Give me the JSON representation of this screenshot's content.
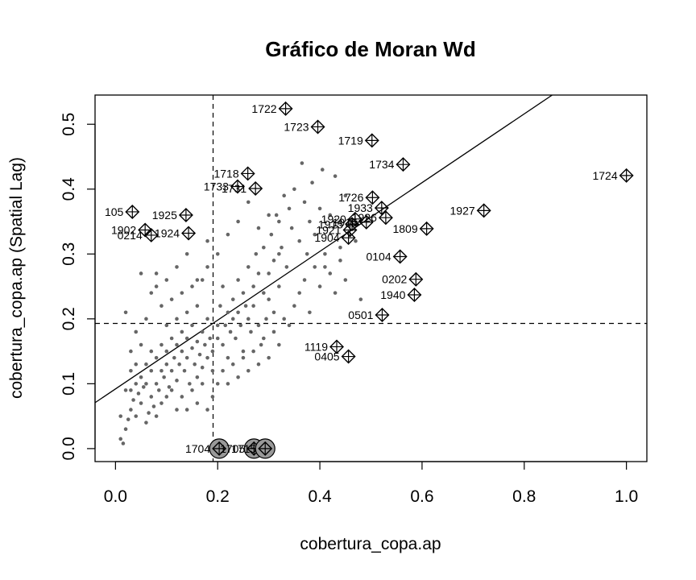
{
  "chart_data": {
    "type": "scatter",
    "title": "Gráfico de Moran Wd",
    "xlabel": "cobertura_copa.ap",
    "ylabel": "cobertura_copa.ap (Spatial Lag)",
    "xlim": [
      -0.04,
      1.04
    ],
    "ylim": [
      -0.02,
      0.545
    ],
    "x_ticks": [
      "0.0",
      "0.2",
      "0.4",
      "0.6",
      "0.8",
      "1.0"
    ],
    "y_ticks": [
      "0.0",
      "0.1",
      "0.2",
      "0.3",
      "0.4",
      "0.5"
    ],
    "x_tick_values": [
      0,
      0.2,
      0.4,
      0.6,
      0.8,
      1.0
    ],
    "y_tick_values": [
      0,
      0.1,
      0.2,
      0.3,
      0.4,
      0.5
    ],
    "mean_x": 0.191,
    "mean_y": 0.193,
    "regression": {
      "intercept": 0.092,
      "slope": 0.53
    },
    "colors": {
      "points": "#666666",
      "influential": "#000000",
      "zero_fill": "#999999",
      "axis": "#000000"
    },
    "influential_points": [
      {
        "label": "1722",
        "x": 0.333,
        "y": 0.524
      },
      {
        "label": "1723",
        "x": 0.396,
        "y": 0.496
      },
      {
        "label": "1719",
        "x": 0.502,
        "y": 0.475
      },
      {
        "label": "1734",
        "x": 0.563,
        "y": 0.438
      },
      {
        "label": "1724",
        "x": 1.0,
        "y": 0.421
      },
      {
        "label": "1718",
        "x": 0.259,
        "y": 0.424
      },
      {
        "label": "1733",
        "x": 0.239,
        "y": 0.404
      },
      {
        "label": "1731",
        "x": 0.274,
        "y": 0.401
      },
      {
        "label": "1726",
        "x": 0.503,
        "y": 0.387
      },
      {
        "label": "1933",
        "x": 0.521,
        "y": 0.371
      },
      {
        "label": "1927",
        "x": 0.721,
        "y": 0.367
      },
      {
        "label": "105",
        "x": 0.033,
        "y": 0.365
      },
      {
        "label": "1925",
        "x": 0.138,
        "y": 0.36
      },
      {
        "label": "1920",
        "x": 0.469,
        "y": 0.354
      },
      {
        "label": "1926",
        "x": 0.529,
        "y": 0.356
      },
      {
        "label": "1916",
        "x": 0.491,
        "y": 0.349
      },
      {
        "label": "1915",
        "x": 0.463,
        "y": 0.346
      },
      {
        "label": "1921",
        "x": 0.459,
        "y": 0.337
      },
      {
        "label": "1809",
        "x": 0.609,
        "y": 0.339
      },
      {
        "label": "1902",
        "x": 0.058,
        "y": 0.337
      },
      {
        "label": "0214",
        "x": 0.07,
        "y": 0.329
      },
      {
        "label": "1924",
        "x": 0.143,
        "y": 0.332
      },
      {
        "label": "1904",
        "x": 0.456,
        "y": 0.325
      },
      {
        "label": "0104",
        "x": 0.557,
        "y": 0.296
      },
      {
        "label": "0202",
        "x": 0.588,
        "y": 0.261
      },
      {
        "label": "1940",
        "x": 0.585,
        "y": 0.237
      },
      {
        "label": "0501",
        "x": 0.522,
        "y": 0.206
      },
      {
        "label": "1119",
        "x": 0.433,
        "y": 0.157
      },
      {
        "label": "0405",
        "x": 0.456,
        "y": 0.142
      },
      {
        "label": "1704",
        "x": 0.203,
        "y": 0.0
      },
      {
        "label": "1705",
        "x": 0.271,
        "y": 0.0
      },
      {
        "label": "1715",
        "x": 0.293,
        "y": 0.0
      }
    ],
    "points": [
      [
        0.01,
        0.015
      ],
      [
        0.015,
        0.008
      ],
      [
        0.02,
        0.03
      ],
      [
        0.025,
        0.045
      ],
      [
        0.03,
        0.06
      ],
      [
        0.03,
        0.09
      ],
      [
        0.035,
        0.075
      ],
      [
        0.04,
        0.05
      ],
      [
        0.04,
        0.1
      ],
      [
        0.045,
        0.085
      ],
      [
        0.05,
        0.07
      ],
      [
        0.05,
        0.11
      ],
      [
        0.055,
        0.095
      ],
      [
        0.06,
        0.04
      ],
      [
        0.06,
        0.13
      ],
      [
        0.065,
        0.055
      ],
      [
        0.07,
        0.08
      ],
      [
        0.07,
        0.12
      ],
      [
        0.075,
        0.065
      ],
      [
        0.08,
        0.1
      ],
      [
        0.08,
        0.14
      ],
      [
        0.085,
        0.09
      ],
      [
        0.09,
        0.07
      ],
      [
        0.09,
        0.16
      ],
      [
        0.095,
        0.11
      ],
      [
        0.1,
        0.13
      ],
      [
        0.1,
        0.15
      ],
      [
        0.105,
        0.095
      ],
      [
        0.11,
        0.12
      ],
      [
        0.11,
        0.17
      ],
      [
        0.115,
        0.14
      ],
      [
        0.12,
        0.105
      ],
      [
        0.12,
        0.16
      ],
      [
        0.125,
        0.13
      ],
      [
        0.13,
        0.18
      ],
      [
        0.13,
        0.15
      ],
      [
        0.135,
        0.12
      ],
      [
        0.14,
        0.14
      ],
      [
        0.14,
        0.17
      ],
      [
        0.145,
        0.1
      ],
      [
        0.15,
        0.155
      ],
      [
        0.15,
        0.19
      ],
      [
        0.155,
        0.13
      ],
      [
        0.16,
        0.165
      ],
      [
        0.16,
        0.11
      ],
      [
        0.165,
        0.145
      ],
      [
        0.17,
        0.18
      ],
      [
        0.17,
        0.125
      ],
      [
        0.175,
        0.16
      ],
      [
        0.18,
        0.14
      ],
      [
        0.18,
        0.2
      ],
      [
        0.185,
        0.17
      ],
      [
        0.19,
        0.12
      ],
      [
        0.19,
        0.15
      ],
      [
        0.2,
        0.19
      ],
      [
        0.2,
        0.17
      ],
      [
        0.205,
        0.22
      ],
      [
        0.21,
        0.16
      ],
      [
        0.21,
        0.25
      ],
      [
        0.215,
        0.19
      ],
      [
        0.22,
        0.21
      ],
      [
        0.22,
        0.14
      ],
      [
        0.225,
        0.18
      ],
      [
        0.23,
        0.23
      ],
      [
        0.23,
        0.2
      ],
      [
        0.235,
        0.17
      ],
      [
        0.24,
        0.26
      ],
      [
        0.24,
        0.21
      ],
      [
        0.245,
        0.19
      ],
      [
        0.25,
        0.24
      ],
      [
        0.25,
        0.15
      ],
      [
        0.255,
        0.22
      ],
      [
        0.26,
        0.28
      ],
      [
        0.26,
        0.2
      ],
      [
        0.265,
        0.18
      ],
      [
        0.27,
        0.25
      ],
      [
        0.27,
        0.22
      ],
      [
        0.275,
        0.3
      ],
      [
        0.28,
        0.19
      ],
      [
        0.28,
        0.27
      ],
      [
        0.285,
        0.16
      ],
      [
        0.29,
        0.24
      ],
      [
        0.29,
        0.31
      ],
      [
        0.295,
        0.2
      ],
      [
        0.3,
        0.27
      ],
      [
        0.3,
        0.23
      ],
      [
        0.305,
        0.33
      ],
      [
        0.31,
        0.21
      ],
      [
        0.31,
        0.29
      ],
      [
        0.315,
        0.36
      ],
      [
        0.32,
        0.25
      ],
      [
        0.32,
        0.35
      ],
      [
        0.325,
        0.31
      ],
      [
        0.33,
        0.39
      ],
      [
        0.335,
        0.28
      ],
      [
        0.34,
        0.37
      ],
      [
        0.345,
        0.34
      ],
      [
        0.35,
        0.4
      ],
      [
        0.36,
        0.32
      ],
      [
        0.365,
        0.44
      ],
      [
        0.37,
        0.38
      ],
      [
        0.375,
        0.3
      ],
      [
        0.38,
        0.35
      ],
      [
        0.385,
        0.41
      ],
      [
        0.39,
        0.33
      ],
      [
        0.4,
        0.37
      ],
      [
        0.405,
        0.43
      ],
      [
        0.41,
        0.28
      ],
      [
        0.42,
        0.36
      ],
      [
        0.43,
        0.42
      ],
      [
        0.44,
        0.31
      ],
      [
        0.45,
        0.39
      ],
      [
        0.46,
        0.35
      ],
      [
        0.02,
        0.21
      ],
      [
        0.03,
        0.15
      ],
      [
        0.04,
        0.18
      ],
      [
        0.05,
        0.27
      ],
      [
        0.06,
        0.2
      ],
      [
        0.07,
        0.24
      ],
      [
        0.08,
        0.27
      ],
      [
        0.09,
        0.22
      ],
      [
        0.1,
        0.19
      ],
      [
        0.11,
        0.23
      ],
      [
        0.12,
        0.2
      ],
      [
        0.13,
        0.24
      ],
      [
        0.14,
        0.21
      ],
      [
        0.15,
        0.25
      ],
      [
        0.16,
        0.22
      ],
      [
        0.17,
        0.26
      ],
      [
        0.18,
        0.32
      ],
      [
        0.01,
        0.05
      ],
      [
        0.02,
        0.09
      ],
      [
        0.03,
        0.12
      ],
      [
        0.04,
        0.13
      ],
      [
        0.05,
        0.16
      ],
      [
        0.06,
        0.1
      ],
      [
        0.07,
        0.15
      ],
      [
        0.08,
        0.05
      ],
      [
        0.09,
        0.12
      ],
      [
        0.1,
        0.08
      ],
      [
        0.11,
        0.09
      ],
      [
        0.12,
        0.06
      ],
      [
        0.13,
        0.08
      ],
      [
        0.14,
        0.06
      ],
      [
        0.15,
        0.09
      ],
      [
        0.16,
        0.07
      ],
      [
        0.17,
        0.1
      ],
      [
        0.18,
        0.06
      ],
      [
        0.19,
        0.08
      ],
      [
        0.2,
        0.1
      ],
      [
        0.21,
        0.12
      ],
      [
        0.22,
        0.1
      ],
      [
        0.23,
        0.13
      ],
      [
        0.24,
        0.11
      ],
      [
        0.25,
        0.14
      ],
      [
        0.26,
        0.12
      ],
      [
        0.27,
        0.15
      ],
      [
        0.28,
        0.13
      ],
      [
        0.29,
        0.17
      ],
      [
        0.3,
        0.14
      ],
      [
        0.31,
        0.18
      ],
      [
        0.32,
        0.16
      ],
      [
        0.33,
        0.2
      ],
      [
        0.34,
        0.19
      ],
      [
        0.35,
        0.22
      ],
      [
        0.36,
        0.24
      ],
      [
        0.37,
        0.26
      ],
      [
        0.38,
        0.21
      ],
      [
        0.39,
        0.28
      ],
      [
        0.4,
        0.25
      ],
      [
        0.41,
        0.3
      ],
      [
        0.42,
        0.27
      ],
      [
        0.43,
        0.24
      ],
      [
        0.44,
        0.29
      ],
      [
        0.45,
        0.26
      ],
      [
        0.47,
        0.32
      ],
      [
        0.48,
        0.23
      ],
      [
        0.22,
        0.33
      ],
      [
        0.24,
        0.35
      ],
      [
        0.26,
        0.38
      ],
      [
        0.28,
        0.34
      ],
      [
        0.3,
        0.36
      ],
      [
        0.32,
        0.3
      ],
      [
        0.2,
        0.3
      ],
      [
        0.18,
        0.28
      ],
      [
        0.16,
        0.26
      ],
      [
        0.14,
        0.3
      ],
      [
        0.12,
        0.28
      ],
      [
        0.1,
        0.26
      ],
      [
        0.08,
        0.25
      ]
    ]
  }
}
